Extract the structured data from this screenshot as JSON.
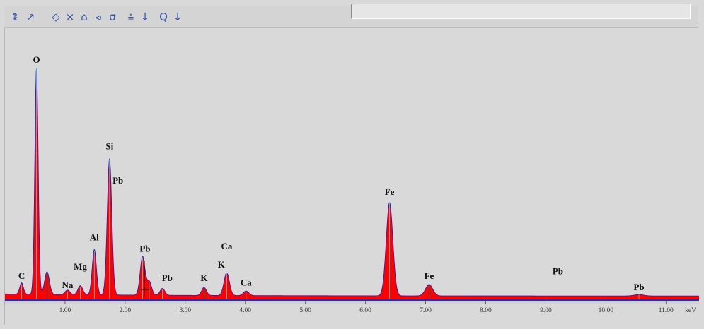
{
  "toolbar": {
    "buttons": [
      {
        "name": "cursor-icon",
        "glyph": "↨"
      },
      {
        "name": "marker-icon",
        "glyph": "↗"
      },
      {
        "name": "expand-horizontal-icon",
        "glyph": "◇"
      },
      {
        "name": "contract-horizontal-icon",
        "glyph": "⨯"
      },
      {
        "name": "expand-vertical-icon",
        "glyph": "⌂"
      },
      {
        "name": "contract-vertical-icon",
        "glyph": "⪦"
      },
      {
        "name": "reset-scale-icon",
        "glyph": "σ"
      },
      {
        "name": "peak-label-icon",
        "glyph": "⩮"
      },
      {
        "name": "peak-label-menu-icon",
        "glyph": "↓"
      },
      {
        "name": "zoom-icon",
        "glyph": "Q"
      },
      {
        "name": "zoom-menu-icon",
        "glyph": "↓"
      }
    ],
    "status_text": ""
  },
  "chart_data": {
    "type": "line",
    "title": "",
    "xlabel": "keV",
    "ylabel": "",
    "xlim": [
      0.0,
      11.55
    ],
    "ylim": [
      0,
      100
    ],
    "grid": false,
    "legend": "none",
    "x_ticks": [
      {
        "value": 1.0,
        "label": "1.00"
      },
      {
        "value": 2.0,
        "label": "2.00"
      },
      {
        "value": 3.0,
        "label": "3.00"
      },
      {
        "value": 4.0,
        "label": "4.00"
      },
      {
        "value": 5.0,
        "label": "5.00"
      },
      {
        "value": 6.0,
        "label": "6.00"
      },
      {
        "value": 7.0,
        "label": "7.00"
      },
      {
        "value": 8.0,
        "label": "8.00"
      },
      {
        "value": 9.0,
        "label": "9.00"
      },
      {
        "value": 10.0,
        "label": "10.00"
      },
      {
        "value": 11.0,
        "label": "11.00"
      }
    ],
    "x_unit_label": "keV",
    "series": [
      {
        "color": "#ff0000",
        "line_color": "#1c1cc8",
        "peak_line_color": "#55cccc",
        "baseline": 1.5,
        "peaks": [
          {
            "x": 0.277,
            "height": 5.0,
            "width": 0.03
          },
          {
            "x": 0.525,
            "height": 100.0,
            "width": 0.028
          },
          {
            "x": 0.7,
            "height": 10.0,
            "width": 0.04
          },
          {
            "x": 1.041,
            "height": 2.0,
            "width": 0.04
          },
          {
            "x": 1.254,
            "height": 4.0,
            "width": 0.04
          },
          {
            "x": 1.487,
            "height": 20.0,
            "width": 0.035
          },
          {
            "x": 1.74,
            "height": 60.0,
            "width": 0.038
          },
          {
            "x": 2.29,
            "height": 17.0,
            "width": 0.04
          },
          {
            "x": 2.4,
            "height": 6.0,
            "width": 0.04
          },
          {
            "x": 2.62,
            "height": 3.0,
            "width": 0.04
          },
          {
            "x": 3.313,
            "height": 3.5,
            "width": 0.04
          },
          {
            "x": 3.69,
            "height": 10.0,
            "width": 0.045
          },
          {
            "x": 4.013,
            "height": 2.0,
            "width": 0.045
          },
          {
            "x": 6.4,
            "height": 41.0,
            "width": 0.055
          },
          {
            "x": 7.058,
            "height": 5.0,
            "width": 0.06
          },
          {
            "x": 10.55,
            "height": 0.6,
            "width": 0.08
          }
        ]
      }
    ],
    "annotations": [
      {
        "text": "C",
        "x": 0.277,
        "y": 9
      },
      {
        "text": "O",
        "x": 0.525,
        "y": 104
      },
      {
        "text": "Na",
        "x": 1.041,
        "y": 5
      },
      {
        "text": "Mg",
        "x": 1.254,
        "y": 13
      },
      {
        "text": "Al",
        "x": 1.487,
        "y": 26
      },
      {
        "text": "Si",
        "x": 1.74,
        "y": 66
      },
      {
        "text": "Pb",
        "x": 1.88,
        "y": 51
      },
      {
        "text": "Pb",
        "x": 2.33,
        "y": 21
      },
      {
        "text": "Pb",
        "x": 2.7,
        "y": 8
      },
      {
        "text": "K",
        "x": 3.313,
        "y": 8
      },
      {
        "text": "K",
        "x": 3.6,
        "y": 14
      },
      {
        "text": "Ca",
        "x": 3.69,
        "y": 22
      },
      {
        "text": "Ca",
        "x": 4.013,
        "y": 6
      },
      {
        "text": "Fe",
        "x": 6.4,
        "y": 46
      },
      {
        "text": "Fe",
        "x": 7.058,
        "y": 9
      },
      {
        "text": "Pb",
        "x": 9.2,
        "y": 11
      },
      {
        "text": "Pb",
        "x": 10.55,
        "y": 4
      }
    ],
    "marker": {
      "x": 2.32
    }
  }
}
